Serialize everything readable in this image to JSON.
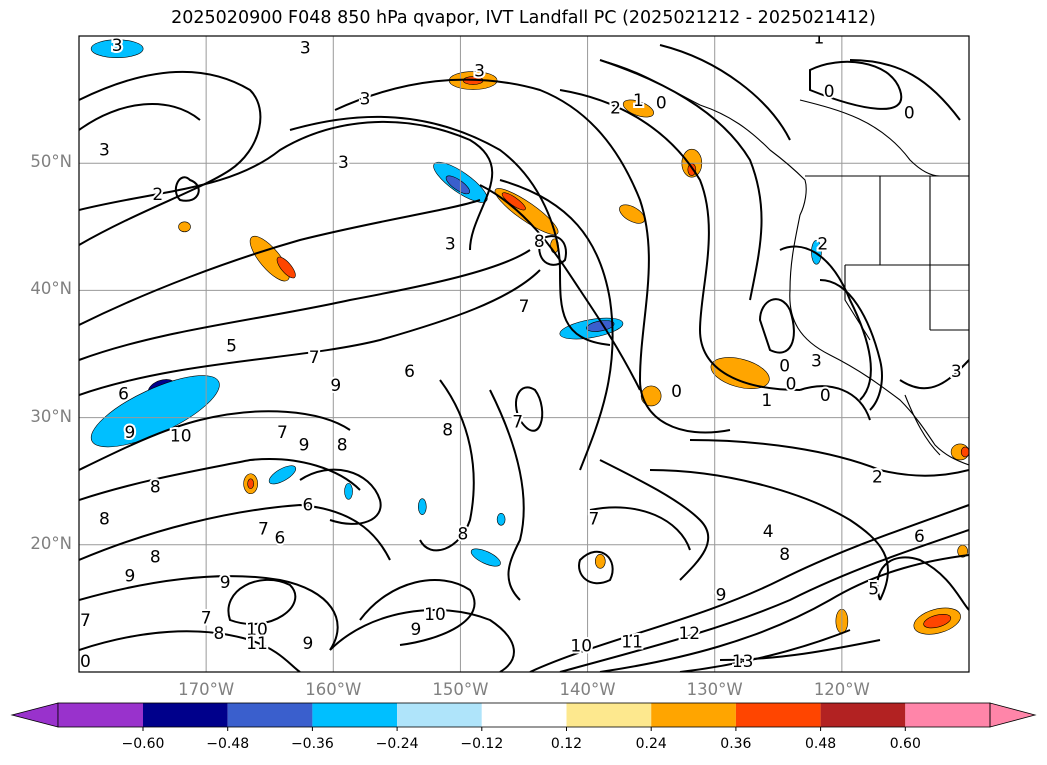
{
  "title": "2025020900 F048 850 hPa qvapor, IVT Landfall PC (2025021212 - 2025021412)",
  "map": {
    "lon_range": [
      -180,
      -110
    ],
    "lat_range": [
      10,
      60
    ],
    "grid": true,
    "lat_ticks": [
      {
        "value": 50,
        "label": "50°N"
      },
      {
        "value": 40,
        "label": "40°N"
      },
      {
        "value": 30,
        "label": "30°N"
      },
      {
        "value": 20,
        "label": "20°N"
      }
    ],
    "lon_ticks": [
      {
        "value": -170,
        "label": "170°W"
      },
      {
        "value": -160,
        "label": "160°W"
      },
      {
        "value": -150,
        "label": "150°W"
      },
      {
        "value": -140,
        "label": "140°W"
      },
      {
        "value": -130,
        "label": "130°W"
      },
      {
        "value": -120,
        "label": "120°W"
      }
    ],
    "contour_labels": [
      {
        "text": "3",
        "lon": -177.0,
        "lat": 59.2
      },
      {
        "text": "3",
        "lon": -162.2,
        "lat": 59.0
      },
      {
        "text": "3",
        "lon": -148.5,
        "lat": 57.2
      },
      {
        "text": "3",
        "lon": -157.5,
        "lat": 55.0
      },
      {
        "text": "2",
        "lon": -137.8,
        "lat": 54.3
      },
      {
        "text": "1",
        "lon": -136.0,
        "lat": 54.9
      },
      {
        "text": "0",
        "lon": -134.2,
        "lat": 54.7
      },
      {
        "text": "1",
        "lon": -121.8,
        "lat": 59.8
      },
      {
        "text": "0",
        "lon": -121.0,
        "lat": 55.6
      },
      {
        "text": "0",
        "lon": -114.7,
        "lat": 53.9
      },
      {
        "text": "3",
        "lon": -178.0,
        "lat": 51.0
      },
      {
        "text": "2",
        "lon": -173.8,
        "lat": 47.5
      },
      {
        "text": "3",
        "lon": -159.2,
        "lat": 50.0
      },
      {
        "text": "3",
        "lon": -150.8,
        "lat": 43.6
      },
      {
        "text": "8",
        "lon": -143.8,
        "lat": 43.8
      },
      {
        "text": "2",
        "lon": -121.5,
        "lat": 43.6
      },
      {
        "text": "7",
        "lon": -145.0,
        "lat": 38.7
      },
      {
        "text": "5",
        "lon": -168.0,
        "lat": 35.6
      },
      {
        "text": "7",
        "lon": -161.5,
        "lat": 34.7
      },
      {
        "text": "6",
        "lon": -154.0,
        "lat": 33.6
      },
      {
        "text": "9",
        "lon": -159.8,
        "lat": 32.5
      },
      {
        "text": "0",
        "lon": -133.0,
        "lat": 32.0
      },
      {
        "text": "0",
        "lon": -124.5,
        "lat": 34.0
      },
      {
        "text": "0",
        "lon": -124.0,
        "lat": 32.6
      },
      {
        "text": "3",
        "lon": -122.0,
        "lat": 34.4
      },
      {
        "text": "1",
        "lon": -125.9,
        "lat": 31.3
      },
      {
        "text": "0",
        "lon": -121.3,
        "lat": 31.7
      },
      {
        "text": "3",
        "lon": -111.0,
        "lat": 33.6
      },
      {
        "text": "6",
        "lon": -176.5,
        "lat": 31.8
      },
      {
        "text": "9",
        "lon": -176.0,
        "lat": 28.8
      },
      {
        "text": "10",
        "lon": -172.0,
        "lat": 28.5
      },
      {
        "text": "7",
        "lon": -164.0,
        "lat": 28.8
      },
      {
        "text": "9",
        "lon": -162.3,
        "lat": 27.8
      },
      {
        "text": "8",
        "lon": -159.3,
        "lat": 27.8
      },
      {
        "text": "8",
        "lon": -151.0,
        "lat": 29.0
      },
      {
        "text": "7",
        "lon": -145.5,
        "lat": 29.6
      },
      {
        "text": "8",
        "lon": -174.0,
        "lat": 24.5
      },
      {
        "text": "8",
        "lon": -178.0,
        "lat": 22.0
      },
      {
        "text": "7",
        "lon": -165.5,
        "lat": 21.2
      },
      {
        "text": "6",
        "lon": -164.2,
        "lat": 20.5
      },
      {
        "text": "6",
        "lon": -162.0,
        "lat": 23.1
      },
      {
        "text": "8",
        "lon": -149.8,
        "lat": 20.8
      },
      {
        "text": "7",
        "lon": -139.5,
        "lat": 22.0
      },
      {
        "text": "2",
        "lon": -117.2,
        "lat": 25.3
      },
      {
        "text": "4",
        "lon": -125.8,
        "lat": 21.0
      },
      {
        "text": "6",
        "lon": -113.9,
        "lat": 20.6
      },
      {
        "text": "8",
        "lon": -124.5,
        "lat": 19.2
      },
      {
        "text": "5",
        "lon": -117.5,
        "lat": 16.5
      },
      {
        "text": "9",
        "lon": -129.5,
        "lat": 16.0
      },
      {
        "text": "9",
        "lon": -176.0,
        "lat": 17.5
      },
      {
        "text": "8",
        "lon": -174.0,
        "lat": 19.0
      },
      {
        "text": "9",
        "lon": -168.5,
        "lat": 17.0
      },
      {
        "text": "7",
        "lon": -179.5,
        "lat": 14.0
      },
      {
        "text": "7",
        "lon": -170.0,
        "lat": 14.2
      },
      {
        "text": "8",
        "lon": -169.0,
        "lat": 13.0
      },
      {
        "text": "10",
        "lon": -166.0,
        "lat": 13.3
      },
      {
        "text": "11",
        "lon": -166.0,
        "lat": 12.2
      },
      {
        "text": "9",
        "lon": -162.0,
        "lat": 12.2
      },
      {
        "text": "9",
        "lon": -153.5,
        "lat": 13.3
      },
      {
        "text": "10",
        "lon": -152.0,
        "lat": 14.5
      },
      {
        "text": "10",
        "lon": -140.5,
        "lat": 12.0
      },
      {
        "text": "11",
        "lon": -136.5,
        "lat": 12.3
      },
      {
        "text": "12",
        "lon": -132.0,
        "lat": 13.0
      },
      {
        "text": "13",
        "lon": -127.8,
        "lat": 10.8
      },
      {
        "text": "0",
        "lon": -179.5,
        "lat": 10.8
      }
    ],
    "shading_blobs": [
      {
        "color": "#0000ff",
        "lon": -173.0,
        "lat": 31.5,
        "rx": 32,
        "ry": 12,
        "rot": -20,
        "level": "-0.36"
      },
      {
        "color": "#00008b",
        "lon": -173.5,
        "lat": 32.3,
        "rx": 14,
        "ry": 8,
        "rot": -20,
        "level": "-0.60"
      },
      {
        "color": "#00bfff",
        "lon": -174.0,
        "lat": 30.5,
        "rx": 70,
        "ry": 22,
        "rot": -25,
        "level": "-0.24"
      },
      {
        "color": "#00bfff",
        "lon": -177.0,
        "lat": 59.0,
        "rx": 26,
        "ry": 9,
        "rot": 0,
        "level": "-0.24"
      },
      {
        "color": "#00bfff",
        "lon": -150.0,
        "lat": 48.5,
        "rx": 32,
        "ry": 10,
        "rot": 35,
        "level": "-0.24"
      },
      {
        "color": "#3a5fcd",
        "lon": -150.2,
        "lat": 48.3,
        "rx": 14,
        "ry": 5,
        "rot": 35,
        "level": "-0.48"
      },
      {
        "color": "#00bfff",
        "lon": -139.7,
        "lat": 37.0,
        "rx": 32,
        "ry": 9,
        "rot": -10,
        "level": "-0.24"
      },
      {
        "color": "#3a5fcd",
        "lon": -139.0,
        "lat": 37.2,
        "rx": 14,
        "ry": 5,
        "rot": -10,
        "level": "-0.48"
      },
      {
        "color": "#00bfff",
        "lon": -148.0,
        "lat": 19.0,
        "rx": 16,
        "ry": 6,
        "rot": 25,
        "level": "-0.24"
      },
      {
        "color": "#00bfff",
        "lon": -164.0,
        "lat": 25.5,
        "rx": 15,
        "ry": 6,
        "rot": -30,
        "level": "-0.24"
      },
      {
        "color": "#00bfff",
        "lon": -158.8,
        "lat": 24.2,
        "rx": 4,
        "ry": 8,
        "rot": 0,
        "level": "-0.24"
      },
      {
        "color": "#00bfff",
        "lon": -153.0,
        "lat": 23.0,
        "rx": 4,
        "ry": 8,
        "rot": 0,
        "level": "-0.24"
      },
      {
        "color": "#00bfff",
        "lon": -146.8,
        "lat": 22.0,
        "rx": 4,
        "ry": 6,
        "rot": 0,
        "level": "-0.24"
      },
      {
        "color": "#00bfff",
        "lon": -122.0,
        "lat": 43.0,
        "rx": 5,
        "ry": 12,
        "rot": 0,
        "level": "-0.24"
      },
      {
        "color": "#ffa500",
        "lon": -165.0,
        "lat": 42.5,
        "rx": 28,
        "ry": 10,
        "rot": 50,
        "level": "0.24"
      },
      {
        "color": "#ff4500",
        "lon": -163.7,
        "lat": 41.8,
        "rx": 13,
        "ry": 5,
        "rot": 50,
        "level": "0.36"
      },
      {
        "color": "#ffa500",
        "lon": -149.0,
        "lat": 56.5,
        "rx": 24,
        "ry": 9,
        "rot": 0,
        "level": "0.24"
      },
      {
        "color": "#ff4500",
        "lon": -149.0,
        "lat": 56.5,
        "rx": 10,
        "ry": 4,
        "rot": 0,
        "level": "0.36"
      },
      {
        "color": "#ffa500",
        "lon": -144.8,
        "lat": 46.2,
        "rx": 38,
        "ry": 9,
        "rot": 35,
        "level": "0.24"
      },
      {
        "color": "#ff4500",
        "lon": -145.8,
        "lat": 47.0,
        "rx": 14,
        "ry": 4,
        "rot": 35,
        "level": "0.36"
      },
      {
        "color": "#ffa500",
        "lon": -136.0,
        "lat": 54.3,
        "rx": 16,
        "ry": 7,
        "rot": 20,
        "level": "0.24"
      },
      {
        "color": "#ffa500",
        "lon": -131.8,
        "lat": 50.0,
        "rx": 10,
        "ry": 14,
        "rot": 0,
        "level": "0.24"
      },
      {
        "color": "#ff4500",
        "lon": -131.8,
        "lat": 49.5,
        "rx": 4,
        "ry": 6,
        "rot": 0,
        "level": "0.36"
      },
      {
        "color": "#ffa500",
        "lon": -136.5,
        "lat": 46.0,
        "rx": 14,
        "ry": 7,
        "rot": 30,
        "level": "0.24"
      },
      {
        "color": "#ffa500",
        "lon": -128.0,
        "lat": 33.5,
        "rx": 30,
        "ry": 14,
        "rot": 15,
        "level": "0.24"
      },
      {
        "color": "#ffa500",
        "lon": -135.0,
        "lat": 31.7,
        "rx": 10,
        "ry": 10,
        "rot": 0,
        "level": "0.24"
      },
      {
        "color": "#ffa500",
        "lon": -166.5,
        "lat": 24.8,
        "rx": 7,
        "ry": 10,
        "rot": 0,
        "level": "0.24"
      },
      {
        "color": "#ff4500",
        "lon": -166.5,
        "lat": 24.8,
        "rx": 3,
        "ry": 5,
        "rot": 0,
        "level": "0.36"
      },
      {
        "color": "#ffa500",
        "lon": -139.0,
        "lat": 18.7,
        "rx": 5,
        "ry": 7,
        "rot": 0,
        "level": "0.24"
      },
      {
        "color": "#ffa500",
        "lon": -112.5,
        "lat": 14.0,
        "rx": 24,
        "ry": 12,
        "rot": -15,
        "level": "0.24"
      },
      {
        "color": "#ff4500",
        "lon": -112.5,
        "lat": 14.0,
        "rx": 14,
        "ry": 6,
        "rot": -15,
        "level": "0.36"
      },
      {
        "color": "#ffa500",
        "lon": -120.0,
        "lat": 14.0,
        "rx": 6,
        "ry": 12,
        "rot": 0,
        "level": "0.24"
      },
      {
        "color": "#ffa500",
        "lon": -110.7,
        "lat": 27.3,
        "rx": 9,
        "ry": 8,
        "rot": 0,
        "level": "0.24"
      },
      {
        "color": "#ff4500",
        "lon": -110.3,
        "lat": 27.3,
        "rx": 4,
        "ry": 5,
        "rot": 0,
        "level": "0.36"
      },
      {
        "color": "#ffa500",
        "lon": -110.5,
        "lat": 19.5,
        "rx": 5,
        "ry": 6,
        "rot": 0,
        "level": "0.24"
      },
      {
        "color": "#ffa500",
        "lon": -142.6,
        "lat": 43.5,
        "rx": 4,
        "ry": 7,
        "rot": 0,
        "level": "0.24"
      },
      {
        "color": "#ffa500",
        "lon": -171.7,
        "lat": 45.0,
        "rx": 6,
        "ry": 5,
        "rot": 0,
        "level": "0.24"
      }
    ]
  },
  "colorbar": {
    "colors": [
      "#9932cc",
      "#00008b",
      "#3a5fcd",
      "#00bfff",
      "#afe4fa",
      "#ffffff",
      "#fde88e",
      "#ffa500",
      "#ff4500",
      "#b22222",
      "#ff85a9"
    ],
    "tick_labels": [
      "−0.60",
      "−0.48",
      "−0.36",
      "−0.24",
      "−0.12",
      "0.12",
      "0.24",
      "0.36",
      "0.48",
      "0.60"
    ]
  }
}
